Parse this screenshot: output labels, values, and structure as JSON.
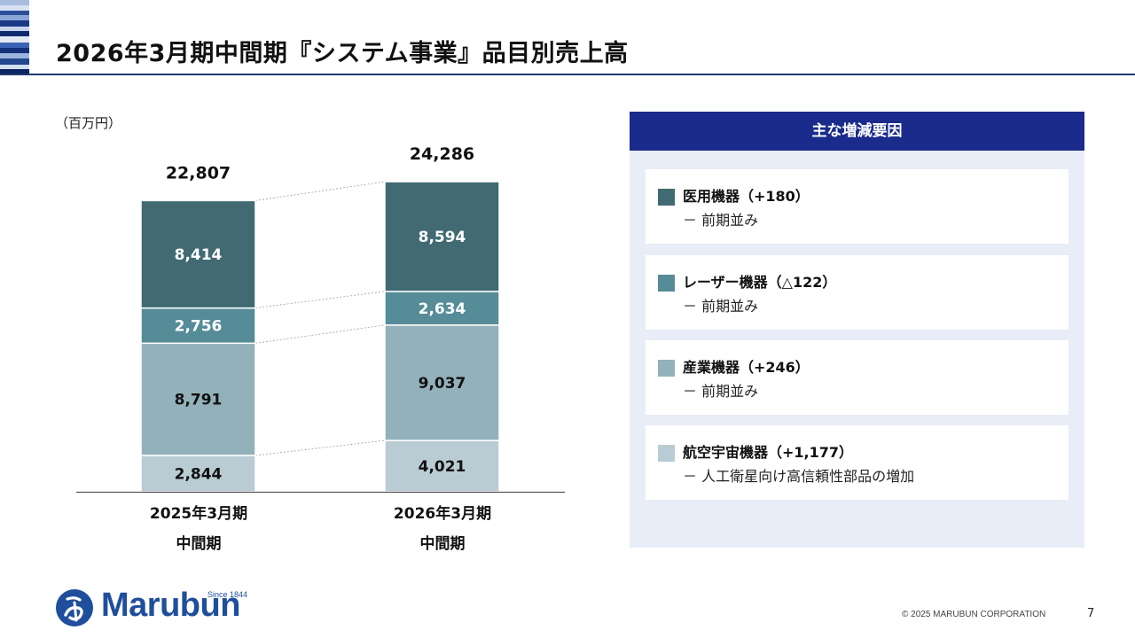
{
  "page": {
    "title": "2026年3月期中間期『システム事業』品目別売上高",
    "page_number": "7",
    "copyright": "© 2025 MARUBUN CORPORATION"
  },
  "logo": {
    "name": "Marubun",
    "since": "Since 1844"
  },
  "chart_data": {
    "type": "bar",
    "stacked": true,
    "unit": "（百万円）",
    "categories": [
      "2025年3月期\n中間期",
      "2026年3月期\n中間期"
    ],
    "category_lines": [
      [
        "2025年3月期",
        "中間期"
      ],
      [
        "2026年3月期",
        "中間期"
      ]
    ],
    "totals": [
      22807,
      24286
    ],
    "totals_display": [
      "22,807",
      "24,286"
    ],
    "series": [
      {
        "name": "航空宇宙機器",
        "values": [
          2844,
          4021
        ],
        "labels": [
          "2,844",
          "4,021"
        ],
        "color": "#b9ccd3",
        "text_color": "#111111"
      },
      {
        "name": "産業機器",
        "values": [
          8791,
          9037
        ],
        "labels": [
          "8,791",
          "9,037"
        ],
        "color": "#92b1ba",
        "text_color": "#111111"
      },
      {
        "name": "レーザー機器",
        "values": [
          2756,
          2634
        ],
        "labels": [
          "2,756",
          "2,634"
        ],
        "color": "#558c98",
        "text_color": "#ffffff"
      },
      {
        "name": "医用機器",
        "values": [
          8414,
          8594
        ],
        "labels": [
          "8,414",
          "8,594"
        ],
        "color": "#416a73",
        "text_color": "#ffffff"
      }
    ],
    "connector_lines": true,
    "ylim": [
      0,
      26000
    ]
  },
  "panel": {
    "title": "主な増減要因",
    "factors": [
      {
        "label": "医用機器（+180）",
        "detail": "－ 前期並み",
        "color": "#416a73"
      },
      {
        "label": "レーザー機器（△122）",
        "detail": "－ 前期並み",
        "color": "#558c98"
      },
      {
        "label": "産業機器（+246）",
        "detail": "－ 前期並み",
        "color": "#92b1ba"
      },
      {
        "label": "航空宇宙機器（+1,177）",
        "detail": "－ 人工衛星向け高信頼性部品の増加",
        "color": "#b9ccd3"
      }
    ]
  }
}
